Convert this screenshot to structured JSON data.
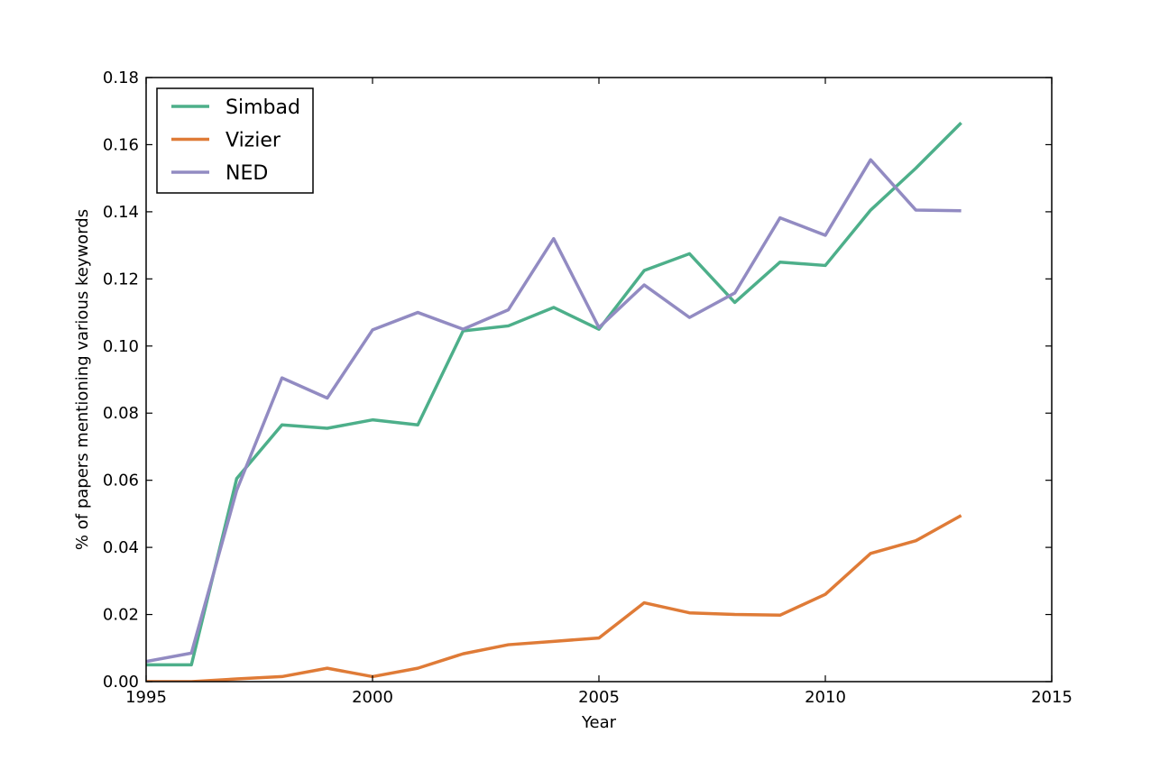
{
  "chart_data": {
    "type": "line",
    "title": "",
    "xlabel": "Year",
    "ylabel": "% of papers mentioning various keywords",
    "xlim": [
      1995,
      2015
    ],
    "ylim": [
      0.0,
      0.18
    ],
    "xticks": [
      1995,
      2000,
      2005,
      2010,
      2015
    ],
    "xtick_labels": [
      "1995",
      "2000",
      "2005",
      "2010",
      "2015"
    ],
    "yticks": [
      0.0,
      0.02,
      0.04,
      0.06,
      0.08,
      0.1,
      0.12,
      0.14,
      0.16,
      0.18
    ],
    "ytick_labels": [
      "0.00",
      "0.02",
      "0.04",
      "0.06",
      "0.08",
      "0.10",
      "0.12",
      "0.14",
      "0.16",
      "0.18"
    ],
    "grid": false,
    "legend_position": "top-left",
    "x": [
      1995,
      1996,
      1997,
      1998,
      1999,
      2000,
      2001,
      2002,
      2003,
      2004,
      2005,
      2006,
      2007,
      2008,
      2009,
      2010,
      2011,
      2012,
      2013
    ],
    "series": [
      {
        "name": "Simbad",
        "color": "#4daf8a",
        "values": [
          0.005,
          0.005,
          0.0605,
          0.0765,
          0.0755,
          0.078,
          0.0765,
          0.1045,
          0.106,
          0.1115,
          0.105,
          0.1225,
          0.1275,
          0.113,
          0.125,
          0.124,
          0.1405,
          0.153,
          0.1665
        ]
      },
      {
        "name": "Vizier",
        "color": "#df7b37",
        "values": [
          0.0,
          0.0,
          0.0008,
          0.0015,
          0.004,
          0.0015,
          0.004,
          0.0083,
          0.011,
          0.012,
          0.013,
          0.0235,
          0.0205,
          0.02,
          0.0198,
          0.026,
          0.0382,
          0.042,
          0.0495
        ]
      },
      {
        "name": "NED",
        "color": "#928bc2",
        "values": [
          0.006,
          0.0085,
          0.057,
          0.0905,
          0.0845,
          0.1048,
          0.11,
          0.105,
          0.1108,
          0.132,
          0.1055,
          0.1182,
          0.1085,
          0.1158,
          0.1382,
          0.133,
          0.1555,
          0.1405,
          0.1403
        ]
      }
    ]
  }
}
